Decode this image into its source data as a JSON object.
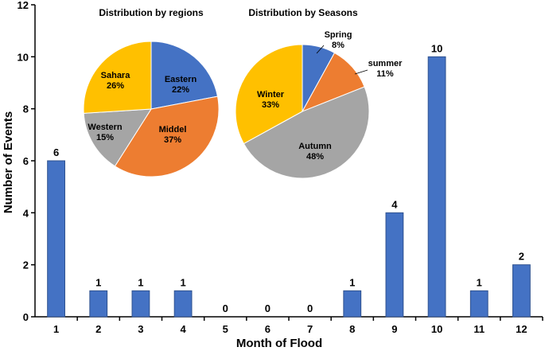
{
  "chart_data": [
    {
      "type": "bar",
      "categories": [
        "1",
        "2",
        "3",
        "4",
        "5",
        "6",
        "7",
        "8",
        "9",
        "10",
        "11",
        "12"
      ],
      "values": [
        6,
        1,
        1,
        1,
        0,
        0,
        0,
        1,
        4,
        10,
        1,
        2
      ],
      "xlabel": "Month of Flood",
      "ylabel": "Number of Events",
      "ylim": [
        0,
        12
      ],
      "yticks": [
        0,
        2,
        4,
        6,
        8,
        10,
        12
      ],
      "grid": false,
      "bar_color": "#4472C4",
      "data_labels": true
    },
    {
      "type": "pie",
      "title": "Distribution by regions",
      "slices": [
        {
          "label": "Eastern",
          "value": 22,
          "text": "22%",
          "color": "#4472C4"
        },
        {
          "label": "Middel",
          "value": 37,
          "text": "37%",
          "color": "#ED7D31"
        },
        {
          "label": "Western",
          "value": 15,
          "text": "15%",
          "color": "#A5A5A5"
        },
        {
          "label": "Sahara",
          "value": 26,
          "text": "26%",
          "color": "#FFC000"
        }
      ]
    },
    {
      "type": "pie",
      "title": "Distribution  by Seasons",
      "slices": [
        {
          "label": "Spring",
          "value": 8,
          "text": "8%",
          "color": "#4472C4"
        },
        {
          "label": "summer",
          "value": 11,
          "text": "11%",
          "color": "#ED7D31"
        },
        {
          "label": "Autumn",
          "value": 48,
          "text": "48%",
          "color": "#A5A5A5"
        },
        {
          "label": "Winter",
          "value": 33,
          "text": "33%",
          "color": "#FFC000"
        }
      ]
    }
  ]
}
